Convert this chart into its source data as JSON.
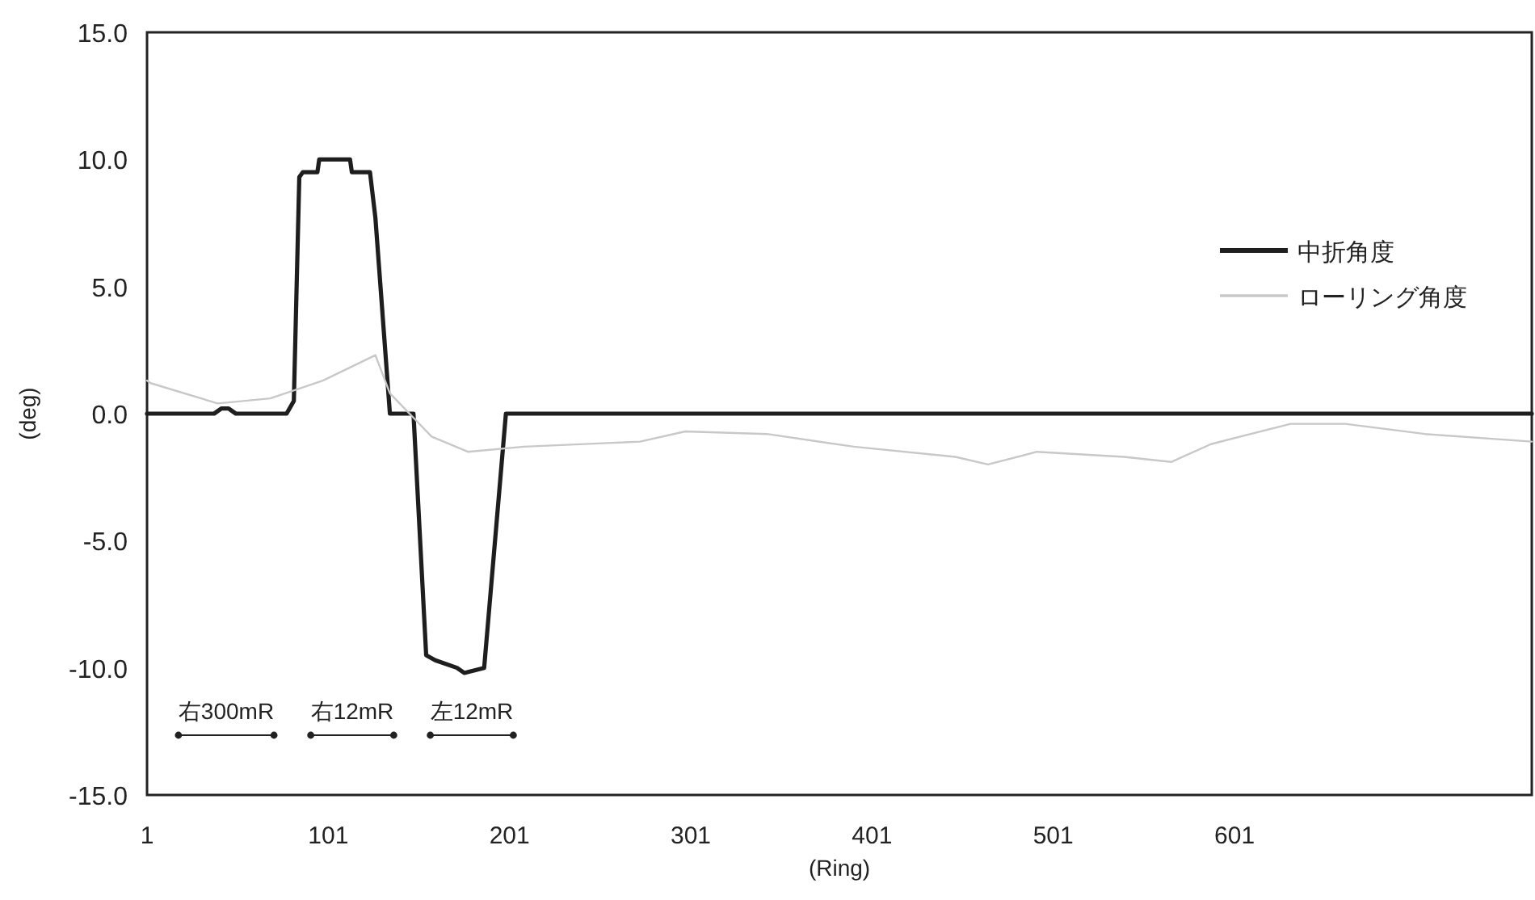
{
  "chart_data": {
    "type": "line",
    "xlabel": "(Ring)",
    "ylabel": "(deg)",
    "xlim": [
      1,
      765
    ],
    "ylim": [
      -15,
      15
    ],
    "xticks": [
      1,
      101,
      201,
      301,
      401,
      501,
      601
    ],
    "yticks": [
      {
        "value": 15,
        "label": "15.0"
      },
      {
        "value": 10,
        "label": "10.0"
      },
      {
        "value": 5,
        "label": "5.0"
      },
      {
        "value": 0,
        "label": "0.0"
      },
      {
        "value": -5,
        "label": "-5.0"
      },
      {
        "value": -10,
        "label": "-10.0"
      },
      {
        "value": -15,
        "label": "-15.0"
      }
    ],
    "grid": false,
    "legend": "right",
    "marker": "none",
    "line_style": "solid",
    "series": [
      {
        "name": "中折角度",
        "color": "#1e1e1e",
        "x": [
          1,
          38,
          42,
          46,
          50,
          78,
          82,
          85,
          87,
          95,
          96,
          113,
          114,
          124,
          127,
          135,
          148,
          155,
          160,
          172,
          176,
          187,
          199,
          765
        ],
        "values": [
          0,
          0,
          0.2,
          0.2,
          0,
          0,
          0.5,
          9.3,
          9.5,
          9.5,
          10.0,
          10.0,
          9.5,
          9.5,
          7.7,
          0,
          0,
          -9.5,
          -9.7,
          -10.0,
          -10.2,
          -10.0,
          0,
          0
        ]
      },
      {
        "name": "ローリング角度",
        "color": "#c8c8c8",
        "x": [
          1,
          3,
          40,
          69,
          98,
          127,
          135,
          158,
          178,
          209,
          273,
          298,
          343,
          391,
          447,
          465,
          492,
          540,
          566,
          588,
          632,
          662,
          706,
          765
        ],
        "values": [
          1.3,
          1.2,
          0.4,
          0.6,
          1.3,
          2.3,
          0.8,
          -0.9,
          -1.5,
          -1.3,
          -1.1,
          -0.7,
          -0.8,
          -1.3,
          -1.7,
          -2.0,
          -1.5,
          -1.7,
          -1.9,
          -1.2,
          -0.4,
          -0.4,
          -0.8,
          -1.1
        ]
      }
    ],
    "annotations": [
      "右300mR",
      "右12mR",
      "左12mR"
    ]
  }
}
